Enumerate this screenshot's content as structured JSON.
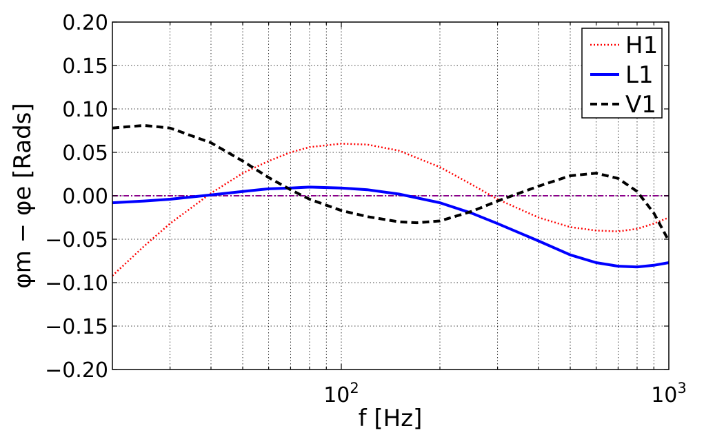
{
  "chart_data": {
    "type": "line",
    "xscale": "log",
    "xlim": [
      20,
      1000
    ],
    "ylim": [
      -0.2,
      0.2
    ],
    "xlabel": "f [Hz]",
    "ylabel": "φm − φe [Rads]",
    "x_tick_labels": [
      {
        "value": 100,
        "base": "10",
        "exp": "2"
      },
      {
        "value": 1000,
        "base": "10",
        "exp": "3"
      }
    ],
    "y_ticks": [
      -0.2,
      -0.15,
      -0.1,
      -0.05,
      0.0,
      0.05,
      0.1,
      0.15,
      0.2
    ],
    "y_tick_labels": [
      "−0.20",
      "−0.15",
      "−0.10",
      "−0.05",
      "0.00",
      "0.05",
      "0.10",
      "0.15",
      "0.20"
    ],
    "grid": true,
    "legend_position": "top-right",
    "reference_line": {
      "y": 0.0,
      "color": "#8b008b",
      "style": "dash-dot"
    },
    "series": [
      {
        "name": "H1",
        "color": "#ff0000",
        "style": "dotted",
        "x": [
          20,
          25,
          30,
          40,
          50,
          60,
          70,
          80,
          100,
          120,
          150,
          200,
          250,
          300,
          400,
          500,
          600,
          700,
          800,
          900,
          1000
        ],
        "y": [
          -0.092,
          -0.058,
          -0.032,
          0.003,
          0.026,
          0.04,
          0.05,
          0.056,
          0.06,
          0.059,
          0.052,
          0.033,
          0.013,
          -0.004,
          -0.025,
          -0.036,
          -0.04,
          -0.041,
          -0.038,
          -0.032,
          -0.025
        ]
      },
      {
        "name": "L1",
        "color": "#0000ff",
        "style": "solid",
        "x": [
          20,
          25,
          30,
          40,
          50,
          60,
          70,
          80,
          100,
          120,
          150,
          200,
          250,
          300,
          400,
          500,
          600,
          700,
          800,
          900,
          1000
        ],
        "y": [
          -0.008,
          -0.006,
          -0.004,
          0.001,
          0.005,
          0.008,
          0.009,
          0.01,
          0.009,
          0.007,
          0.002,
          -0.008,
          -0.02,
          -0.032,
          -0.052,
          -0.068,
          -0.077,
          -0.081,
          -0.082,
          -0.08,
          -0.077
        ]
      },
      {
        "name": "V1",
        "color": "#000000",
        "style": "dashed",
        "x": [
          20,
          25,
          30,
          40,
          50,
          60,
          70,
          80,
          100,
          120,
          150,
          170,
          200,
          250,
          300,
          400,
          500,
          600,
          700,
          800,
          900,
          1000
        ],
        "y": [
          0.078,
          0.081,
          0.078,
          0.061,
          0.04,
          0.021,
          0.007,
          -0.004,
          -0.017,
          -0.024,
          -0.03,
          -0.031,
          -0.029,
          -0.018,
          -0.006,
          0.011,
          0.023,
          0.026,
          0.02,
          0.005,
          -0.02,
          -0.052
        ]
      }
    ]
  }
}
